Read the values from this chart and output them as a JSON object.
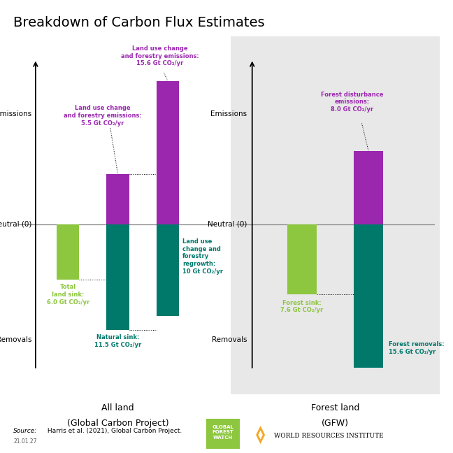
{
  "title": "Breakdown of Carbon Flux Estimates",
  "title_fontsize": 15,
  "background_color": "#ffffff",
  "right_panel_bg": "#e8e8e8",
  "left_panel_title_line1": "All land",
  "left_panel_title_line2": "(Global Carbon Project)",
  "right_panel_title_line1": "Forest land",
  "right_panel_title_line2": "(GFW)",
  "left_bars": [
    {
      "x": 1,
      "bottom": -6.0,
      "height": 6.0,
      "color": "#8dc63f"
    },
    {
      "x": 2,
      "bottom": -11.5,
      "height": 11.5,
      "color": "#00796b"
    },
    {
      "x": 2,
      "bottom": 0,
      "height": 5.5,
      "color": "#9b27af"
    },
    {
      "x": 3,
      "bottom": -10.0,
      "height": 10.0,
      "color": "#00796b"
    },
    {
      "x": 3,
      "bottom": 0,
      "height": 15.6,
      "color": "#9b27af"
    }
  ],
  "right_bars": [
    {
      "x": 1,
      "bottom": -7.6,
      "height": 7.6,
      "color": "#8dc63f"
    },
    {
      "x": 2,
      "bottom": -15.6,
      "height": 15.6,
      "color": "#00796b"
    },
    {
      "x": 2,
      "bottom": 0,
      "height": 8.0,
      "color": "#9b27af"
    }
  ],
  "ylim": [
    -18,
    20
  ],
  "xlim_left": [
    0,
    4
  ],
  "xlim_right": [
    0,
    3
  ],
  "emissions_label": "Emissions",
  "removals_label": "Removals",
  "neutral_label": "Neutral (0)",
  "source_italic": "Source:",
  "source_text": " Harris et al. (2021), Global Carbon Project.",
  "date_text": "21.01.27",
  "color_magenta": "#9b27af",
  "color_teal": "#00796b",
  "color_lime": "#8dc63f",
  "bar_width": 0.45
}
